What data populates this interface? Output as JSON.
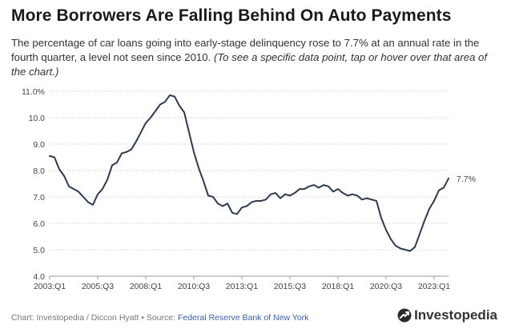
{
  "header": {
    "title": "More Borrowers Are Falling Behind On Auto Payments",
    "subtitle": "The percentage of car loans going into early-stage delinquency rose to 7.7% at an annual rate in the fourth quarter, a level not seen since 2010.",
    "subtitle_note": "(To see a specific data point, tap or hover over that area of the chart.)"
  },
  "footer": {
    "credit": "Chart: Investopedia / Diccon Hyatt • Source: ",
    "source_link": "Federal Reserve Bank of New York",
    "brand": "Investopedia",
    "brand_icon": "investopedia-logo-icon"
  },
  "colors": {
    "line": "#2e3a4d",
    "grid": "#d9d9d9",
    "axis_text": "#444444"
  },
  "chart_data": {
    "type": "line",
    "ylim": [
      4.0,
      11.0
    ],
    "yticks": [
      4.0,
      5.0,
      6.0,
      7.0,
      8.0,
      9.0,
      10.0,
      11.0
    ],
    "ytick_labels": [
      "4.0",
      "5.0",
      "6.0",
      "7.0",
      "8.0",
      "9.0",
      "10.0",
      "11.0%"
    ],
    "xtick_labels": [
      "2003:Q1",
      "2005:Q3",
      "2008:Q1",
      "2010:Q3",
      "2013:Q1",
      "2015:Q3",
      "2018:Q1",
      "2020:Q3",
      "2023:Q1"
    ],
    "xtick_index": [
      0,
      10,
      20,
      30,
      40,
      50,
      60,
      70,
      80
    ],
    "grid": true,
    "end_label": "7.7%",
    "series": [
      {
        "values": [
          8.55,
          8.5,
          8.05,
          7.8,
          7.4,
          7.3,
          7.2,
          7.0,
          6.8,
          6.7,
          7.1,
          7.3,
          7.65,
          8.2,
          8.3,
          8.65,
          8.7,
          8.8,
          9.1,
          9.45,
          9.8,
          10.0,
          10.25,
          10.5,
          10.6,
          10.85,
          10.8,
          10.45,
          10.2,
          9.45,
          8.7,
          8.1,
          7.6,
          7.05,
          7.0,
          6.75,
          6.65,
          6.75,
          6.4,
          6.35,
          6.6,
          6.65,
          6.8,
          6.85,
          6.85,
          6.9,
          7.1,
          7.15,
          6.95,
          7.1,
          7.05,
          7.15,
          7.3,
          7.3,
          7.4,
          7.45,
          7.35,
          7.45,
          7.4,
          7.2,
          7.3,
          7.15,
          7.05,
          7.1,
          7.05,
          6.9,
          6.95,
          6.9,
          6.85,
          6.2,
          5.75,
          5.4,
          5.15,
          5.05,
          5.0,
          4.95,
          5.1,
          5.6,
          6.1,
          6.55,
          6.85,
          7.25,
          7.35,
          7.7
        ]
      }
    ]
  }
}
